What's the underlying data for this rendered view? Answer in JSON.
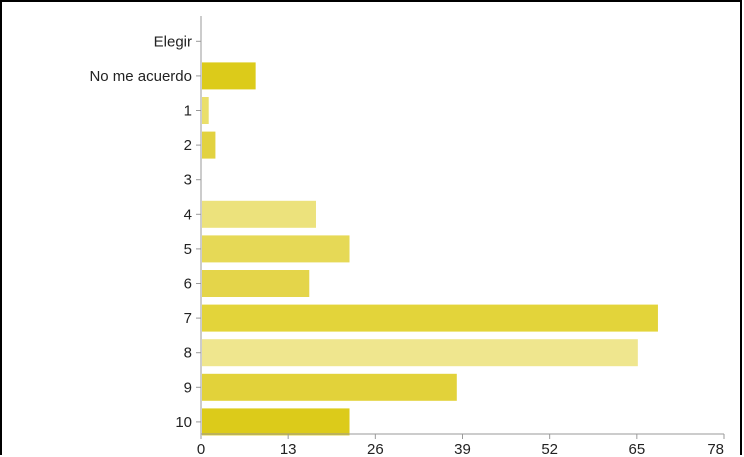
{
  "chart_data": {
    "type": "bar",
    "orientation": "horizontal",
    "categories": [
      "Elegir",
      "No me acuerdo",
      "1",
      "2",
      "3",
      "4",
      "5",
      "6",
      "7",
      "8",
      "9",
      "10"
    ],
    "values": [
      0,
      8,
      1,
      2,
      0,
      17,
      22,
      16,
      68,
      65,
      38,
      22
    ],
    "xlim": [
      0,
      78
    ],
    "xticks": [
      "0",
      "13",
      "26",
      "39",
      "52",
      "65",
      "78"
    ],
    "colors": [
      "#dccb1a",
      "#dccb1a",
      "#eadf6a",
      "#e2d240",
      "#dccb1a",
      "#ece27c",
      "#e6d956",
      "#e4d54a",
      "#e3d43a",
      "#efe68e",
      "#e2d23a",
      "#dccb1a"
    ],
    "title": "",
    "xlabel": "",
    "ylabel": "",
    "grid": false
  }
}
